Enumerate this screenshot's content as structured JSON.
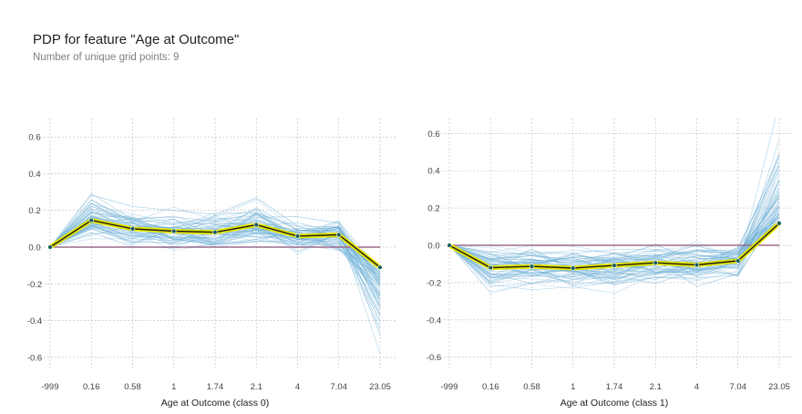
{
  "header": {
    "title": "PDP for feature \"Age at Outcome\"",
    "subtitle": "Number of unique grid points: 9"
  },
  "colors": {
    "ice_lines": "#6baed6",
    "pdp_line": "#1a1a1a",
    "pdp_band": "#e5e500",
    "pdp_marker": "#1b5e5a",
    "zero_line": "#9b6b8c",
    "grid": "#bbbbbb"
  },
  "chart_data": [
    {
      "type": "line",
      "xlabel": "Age at Outcome (class 0)",
      "categories": [
        "-999",
        "0.16",
        "0.58",
        "1",
        "1.74",
        "2.1",
        "4",
        "7.04",
        "23.05"
      ],
      "yticks": [
        -0.6,
        -0.4,
        -0.2,
        0.0,
        0.2,
        0.4,
        0.6
      ],
      "ytick_labels": [
        "-0.6",
        "-0.4",
        "-0.2",
        "0.0",
        "0.2",
        "0.4",
        "0.6"
      ],
      "ylim": [
        -0.67,
        0.7
      ],
      "grid": true,
      "pdp": [
        0.0,
        0.146,
        0.1,
        0.087,
        0.081,
        0.121,
        0.06,
        0.067,
        -0.11
      ],
      "ice_count": 60
    },
    {
      "type": "line",
      "xlabel": "Age at Outcome (class 1)",
      "categories": [
        "-999",
        "0.16",
        "0.58",
        "1",
        "1.74",
        "2.1",
        "4",
        "7.04",
        "23.05"
      ],
      "yticks": [
        -0.6,
        -0.4,
        -0.2,
        0.0,
        0.2,
        0.4,
        0.6
      ],
      "ytick_labels": [
        "-0.6",
        "-0.4",
        "-0.2",
        "0.0",
        "0.2",
        "0.4",
        "0.6"
      ],
      "ylim": [
        -0.67,
        0.68
      ],
      "grid": true,
      "pdp": [
        0.0,
        -0.12,
        -0.113,
        -0.122,
        -0.108,
        -0.094,
        -0.105,
        -0.083,
        0.118
      ],
      "ice_count": 60
    }
  ]
}
